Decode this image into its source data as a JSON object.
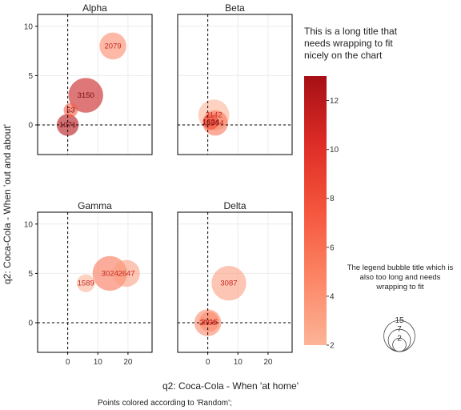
{
  "chart_data": {
    "type": "scatter",
    "xlabel": "q2: Coca-Cola - When 'at home'",
    "ylabel": "q2: Coca-Cola - When 'out and about'",
    "footnote": "Points colored according to 'Random';",
    "xlim": [
      -10,
      28
    ],
    "ylim": [
      -3,
      11.2
    ],
    "xticks": [
      0,
      10,
      20
    ],
    "yticks": [
      0,
      5,
      10
    ],
    "reference_lines": {
      "x": 0,
      "y": 0,
      "style": "dashed"
    },
    "grid": true,
    "colorbar": {
      "title": "This is a long title that needs wrapping to fit nicely on the chart",
      "min": 2,
      "max": 13,
      "ticks": [
        2,
        4,
        6,
        8,
        10,
        12
      ],
      "colors": [
        "#fcb497",
        "#fc8565",
        "#f5553c",
        "#de2c26",
        "#b81419",
        "#a50f15"
      ]
    },
    "size_legend": {
      "title": "The legend bubble title which is also too long and needs wrapping to fit",
      "values": [
        15,
        7,
        2
      ]
    },
    "panels": [
      {
        "title": "Alpha",
        "points": [
          {
            "x": 6,
            "y": 3,
            "label": "3150",
            "color_value": 10,
            "size": 15
          },
          {
            "x": 15,
            "y": 8,
            "label": "2079",
            "color_value": 4,
            "size": 9
          },
          {
            "x": 1,
            "y": 1.5,
            "label": "53",
            "color_value": 6,
            "size": 2.5
          },
          {
            "x": 0,
            "y": 0,
            "label": "1071",
            "color_value": 11,
            "size": 6
          }
        ]
      },
      {
        "title": "Beta",
        "points": [
          {
            "x": 2,
            "y": 1,
            "label": "2142",
            "color_value": 2,
            "size": 12
          },
          {
            "x": 1,
            "y": 0.3,
            "label": "1634",
            "color_value": 7,
            "size": 3
          },
          {
            "x": 2.5,
            "y": 0.2,
            "label": "1534",
            "color_value": 5,
            "size": 8
          }
        ]
      },
      {
        "title": "Gamma",
        "points": [
          {
            "x": 6,
            "y": 4,
            "label": "1589",
            "color_value": 2,
            "size": 4
          },
          {
            "x": 19.5,
            "y": 5,
            "label": "2647",
            "color_value": 3,
            "size": 9
          },
          {
            "x": 14,
            "y": 5,
            "label": "3024",
            "color_value": 5,
            "size": 15
          }
        ]
      },
      {
        "title": "Delta",
        "points": [
          {
            "x": 7,
            "y": 4,
            "label": "3087",
            "color_value": 3,
            "size": 15
          },
          {
            "x": 0,
            "y": 0,
            "label": "2068",
            "color_value": 4,
            "size": 9
          },
          {
            "x": 0.5,
            "y": 0.1,
            "label": "2016",
            "color_value": 4,
            "size": 5
          }
        ]
      }
    ]
  }
}
